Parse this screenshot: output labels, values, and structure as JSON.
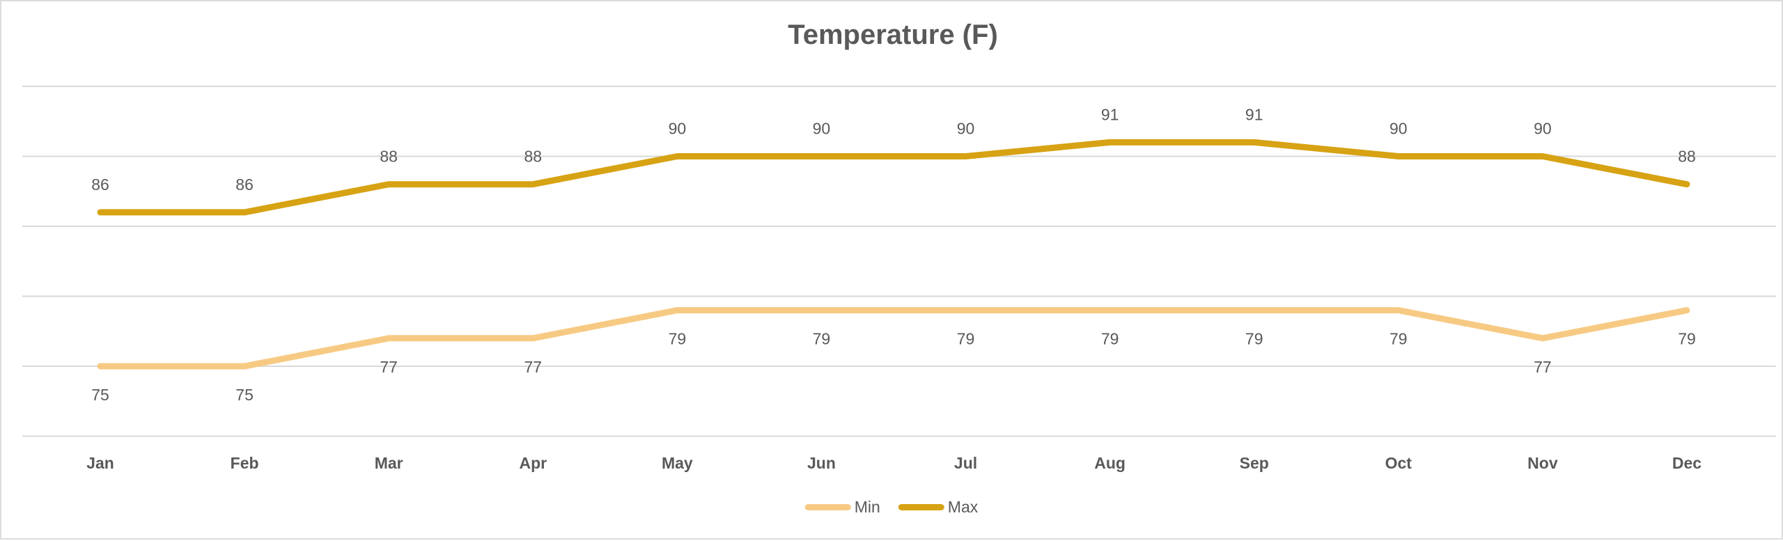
{
  "title": "Temperature (F)",
  "colors": {
    "text": "#595959",
    "gridline": "#d9d9d9",
    "background": "#ffffff",
    "min_series": "#f7ca84",
    "max_series": "#d7a213"
  },
  "legend": {
    "items": [
      {
        "label": "Min",
        "color": "#f7ca84"
      },
      {
        "label": "Max",
        "color": "#d7a213"
      }
    ]
  },
  "chart_data": {
    "type": "line",
    "title": "Temperature (F)",
    "categories": [
      "Jan",
      "Feb",
      "Mar",
      "Apr",
      "May",
      "Jun",
      "Jul",
      "Aug",
      "Sep",
      "Oct",
      "Nov",
      "Dec"
    ],
    "series": [
      {
        "name": "Min",
        "color": "#f7ca84",
        "values": [
          75,
          75,
          77,
          77,
          79,
          79,
          79,
          79,
          79,
          79,
          77,
          79
        ],
        "label_position": "below"
      },
      {
        "name": "Max",
        "color": "#d7a213",
        "values": [
          86,
          86,
          88,
          88,
          90,
          90,
          90,
          91,
          91,
          90,
          90,
          88
        ],
        "label_position": "above"
      }
    ],
    "xlabel": "",
    "ylabel": "",
    "ylim": [
      70,
      95
    ],
    "gridline_step": 5,
    "grid": true,
    "y_axis_labels_visible": false,
    "data_labels": true,
    "legend_position": "bottom"
  }
}
